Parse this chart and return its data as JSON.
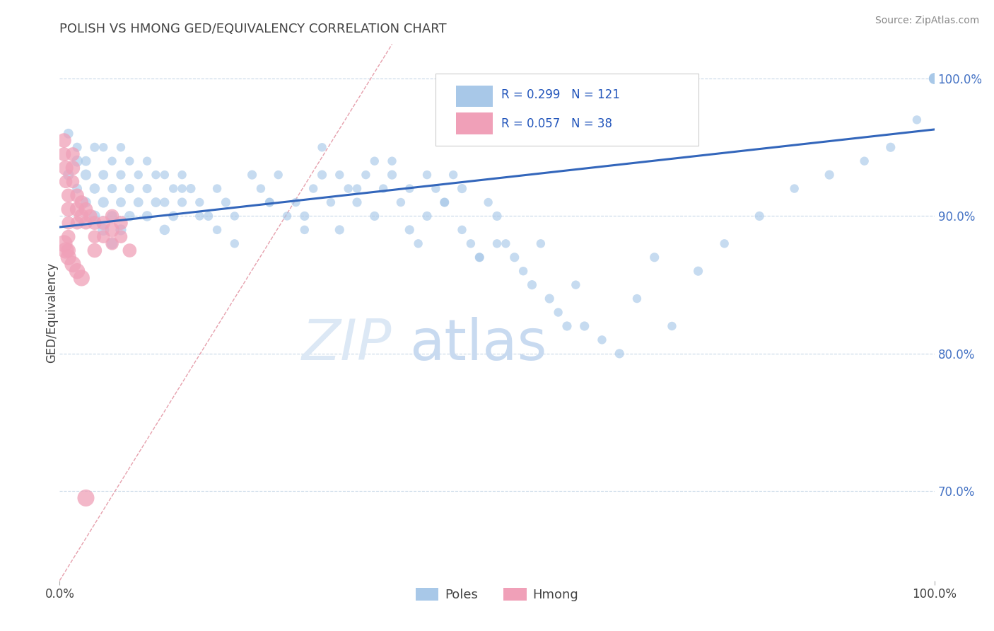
{
  "title": "POLISH VS HMONG GED/EQUIVALENCY CORRELATION CHART",
  "source": "Source: ZipAtlas.com",
  "ylabel": "GED/Equivalency",
  "x_min": 0.0,
  "x_max": 1.0,
  "y_min": 0.635,
  "y_max": 1.025,
  "yticks_right": [
    0.7,
    0.8,
    0.9,
    1.0
  ],
  "ytick_labels_right": [
    "70.0%",
    "80.0%",
    "90.0%",
    "100.0%"
  ],
  "poles_color": "#a8c8e8",
  "hmong_color": "#f0a0b8",
  "poles_R": 0.299,
  "poles_N": 121,
  "hmong_R": 0.057,
  "hmong_N": 38,
  "trend_color": "#3366bb",
  "ref_line_color": "#e08898",
  "watermark_color": "#dce8f5",
  "grid_color": "#c8d8e8",
  "poles_x": [
    0.01,
    0.01,
    0.02,
    0.02,
    0.02,
    0.03,
    0.03,
    0.03,
    0.04,
    0.04,
    0.04,
    0.05,
    0.05,
    0.05,
    0.05,
    0.06,
    0.06,
    0.06,
    0.06,
    0.07,
    0.07,
    0.07,
    0.07,
    0.08,
    0.08,
    0.08,
    0.09,
    0.09,
    0.1,
    0.1,
    0.1,
    0.11,
    0.11,
    0.12,
    0.12,
    0.12,
    0.13,
    0.13,
    0.14,
    0.14,
    0.15,
    0.16,
    0.17,
    0.18,
    0.19,
    0.2,
    0.22,
    0.23,
    0.24,
    0.25,
    0.27,
    0.28,
    0.29,
    0.3,
    0.31,
    0.32,
    0.33,
    0.34,
    0.35,
    0.36,
    0.37,
    0.38,
    0.39,
    0.4,
    0.41,
    0.42,
    0.43,
    0.44,
    0.45,
    0.46,
    0.47,
    0.48,
    0.49,
    0.5,
    0.51,
    0.52,
    0.53,
    0.54,
    0.55,
    0.56,
    0.57,
    0.58,
    0.59,
    0.6,
    0.62,
    0.64,
    0.66,
    0.68,
    0.7,
    0.73,
    0.76,
    0.8,
    0.84,
    0.88,
    0.92,
    0.95,
    0.98,
    1.0,
    1.0,
    1.0,
    1.0,
    1.0,
    1.0,
    0.38,
    0.4,
    0.42,
    0.44,
    0.3,
    0.32,
    0.34,
    0.36,
    0.14,
    0.16,
    0.18,
    0.2,
    0.46,
    0.48,
    0.5,
    0.24,
    0.26,
    0.28
  ],
  "poles_y": [
    0.93,
    0.96,
    0.92,
    0.94,
    0.95,
    0.91,
    0.93,
    0.94,
    0.9,
    0.92,
    0.95,
    0.89,
    0.91,
    0.93,
    0.95,
    0.88,
    0.9,
    0.92,
    0.94,
    0.89,
    0.91,
    0.93,
    0.95,
    0.9,
    0.92,
    0.94,
    0.91,
    0.93,
    0.9,
    0.92,
    0.94,
    0.91,
    0.93,
    0.89,
    0.91,
    0.93,
    0.9,
    0.92,
    0.91,
    0.93,
    0.92,
    0.91,
    0.9,
    0.92,
    0.91,
    0.9,
    0.93,
    0.92,
    0.91,
    0.93,
    0.91,
    0.9,
    0.92,
    0.93,
    0.91,
    0.89,
    0.92,
    0.91,
    0.93,
    0.9,
    0.92,
    0.93,
    0.91,
    0.89,
    0.88,
    0.9,
    0.92,
    0.91,
    0.93,
    0.92,
    0.88,
    0.87,
    0.91,
    0.9,
    0.88,
    0.87,
    0.86,
    0.85,
    0.88,
    0.84,
    0.83,
    0.82,
    0.85,
    0.82,
    0.81,
    0.8,
    0.84,
    0.87,
    0.82,
    0.86,
    0.88,
    0.9,
    0.92,
    0.93,
    0.94,
    0.95,
    0.97,
    1.0,
    1.0,
    1.0,
    1.0,
    1.0,
    1.0,
    0.94,
    0.92,
    0.93,
    0.91,
    0.95,
    0.93,
    0.92,
    0.94,
    0.92,
    0.9,
    0.89,
    0.88,
    0.89,
    0.87,
    0.88,
    0.91,
    0.9,
    0.89
  ],
  "poles_sizes": [
    120,
    100,
    100,
    130,
    90,
    110,
    120,
    100,
    130,
    110,
    90,
    140,
    120,
    100,
    80,
    130,
    110,
    90,
    80,
    120,
    100,
    90,
    80,
    110,
    90,
    80,
    100,
    80,
    110,
    90,
    80,
    100,
    80,
    110,
    90,
    80,
    100,
    80,
    90,
    80,
    90,
    80,
    90,
    80,
    90,
    80,
    90,
    80,
    90,
    80,
    80,
    90,
    80,
    90,
    80,
    90,
    80,
    90,
    80,
    90,
    80,
    90,
    80,
    90,
    80,
    90,
    80,
    90,
    80,
    90,
    80,
    90,
    80,
    90,
    80,
    90,
    80,
    90,
    80,
    90,
    80,
    90,
    80,
    90,
    80,
    90,
    80,
    90,
    80,
    90,
    80,
    90,
    80,
    90,
    80,
    90,
    80,
    110,
    120,
    130,
    120,
    110,
    100,
    80,
    80,
    80,
    80,
    80,
    80,
    80,
    80,
    80,
    80,
    80,
    80,
    80,
    80,
    80,
    80,
    80,
    80
  ],
  "hmong_x": [
    0.005,
    0.005,
    0.007,
    0.007,
    0.01,
    0.01,
    0.01,
    0.01,
    0.01,
    0.015,
    0.015,
    0.015,
    0.02,
    0.02,
    0.02,
    0.025,
    0.025,
    0.03,
    0.03,
    0.035,
    0.04,
    0.04,
    0.04,
    0.05,
    0.05,
    0.06,
    0.06,
    0.06,
    0.07,
    0.07,
    0.08,
    0.005,
    0.007,
    0.01,
    0.015,
    0.02,
    0.025,
    0.03
  ],
  "hmong_y": [
    0.955,
    0.945,
    0.935,
    0.925,
    0.915,
    0.905,
    0.895,
    0.885,
    0.875,
    0.945,
    0.935,
    0.925,
    0.915,
    0.905,
    0.895,
    0.91,
    0.9,
    0.905,
    0.895,
    0.9,
    0.895,
    0.885,
    0.875,
    0.895,
    0.885,
    0.9,
    0.89,
    0.88,
    0.895,
    0.885,
    0.875,
    0.88,
    0.875,
    0.87,
    0.865,
    0.86,
    0.855,
    0.695
  ],
  "hmong_sizes": [
    220,
    200,
    240,
    180,
    200,
    220,
    180,
    200,
    220,
    200,
    220,
    180,
    200,
    220,
    180,
    200,
    220,
    200,
    180,
    200,
    200,
    180,
    220,
    200,
    180,
    200,
    220,
    180,
    200,
    180,
    200,
    300,
    280,
    260,
    280,
    260,
    280,
    300
  ],
  "trend_x_start": 0.0,
  "trend_x_end": 1.0,
  "trend_y_start": 0.892,
  "trend_y_end": 0.963
}
